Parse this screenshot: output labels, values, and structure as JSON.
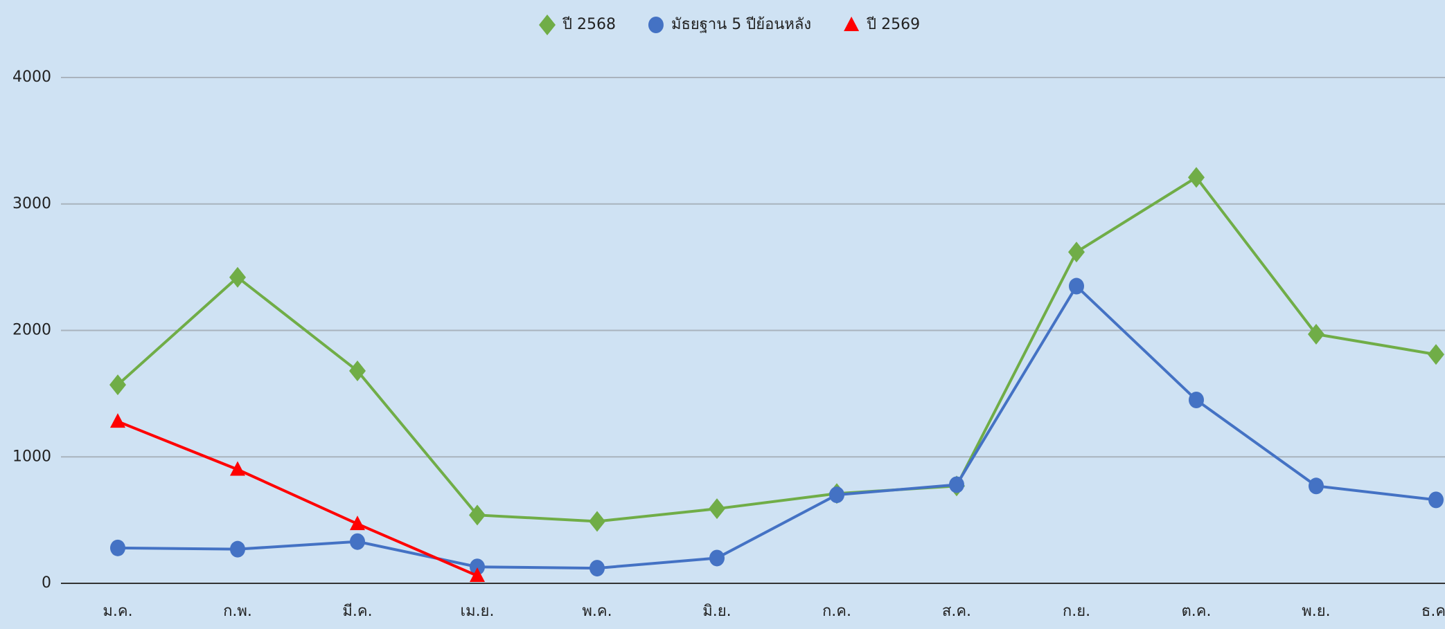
{
  "chart_data": {
    "type": "line",
    "categories": [
      "ม.ค.",
      "ก.พ.",
      "มี.ค.",
      "เม.ย.",
      "พ.ค.",
      "มิ.ย.",
      "ก.ค.",
      "ส.ค.",
      "ก.ย.",
      "ต.ค.",
      "พ.ย.",
      "ธ.ค."
    ],
    "series": [
      {
        "name": "ปี 2568",
        "color": "#70ad47",
        "marker": "diamond",
        "values": [
          1570,
          2420,
          1680,
          540,
          490,
          590,
          710,
          770,
          2620,
          3210,
          1970,
          1810
        ]
      },
      {
        "name": "มัธยฐาน 5 ปีย้อนหลัง",
        "color": "#4472c4",
        "marker": "circle",
        "values": [
          280,
          270,
          330,
          130,
          120,
          200,
          700,
          780,
          2350,
          1450,
          770,
          660
        ]
      },
      {
        "name": "ปี 2569",
        "color": "#ff0000",
        "marker": "triangle",
        "values": [
          1280,
          900,
          470,
          60,
          null,
          null,
          null,
          null,
          null,
          null,
          null,
          null
        ]
      }
    ],
    "ylim": [
      0,
      4000
    ],
    "yticks": [
      0,
      1000,
      2000,
      3000,
      4000
    ],
    "grid": true,
    "legend": "top"
  }
}
